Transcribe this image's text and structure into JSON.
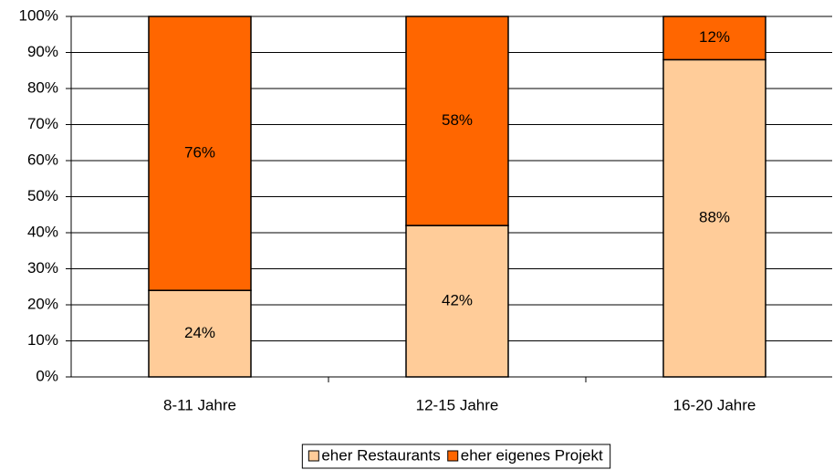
{
  "chart_data": {
    "type": "stacked_bar",
    "categories": [
      "8-11 Jahre",
      "12-15 Jahre",
      "16-20 Jahre"
    ],
    "series": [
      {
        "name": "eher Restaurants",
        "color": "#ffcc99",
        "values": [
          24,
          42,
          88
        ],
        "value_labels": [
          "24%",
          "42%",
          "88%"
        ]
      },
      {
        "name": "eher eigenes Projekt",
        "color": "#ff6600",
        "values": [
          76,
          58,
          12
        ],
        "value_labels": [
          "76%",
          "58%",
          "12%"
        ]
      }
    ],
    "ylim": [
      0,
      100
    ],
    "yticks": [
      {
        "value": 0,
        "label": "0%"
      },
      {
        "value": 10,
        "label": "10%"
      },
      {
        "value": 20,
        "label": "20%"
      },
      {
        "value": 30,
        "label": "30%"
      },
      {
        "value": 40,
        "label": "40%"
      },
      {
        "value": 50,
        "label": "50%"
      },
      {
        "value": 60,
        "label": "60%"
      },
      {
        "value": 70,
        "label": "70%"
      },
      {
        "value": 80,
        "label": "80%"
      },
      {
        "value": 90,
        "label": "90%"
      },
      {
        "value": 100,
        "label": "100%"
      }
    ],
    "grid": true,
    "legend": "bottom"
  }
}
